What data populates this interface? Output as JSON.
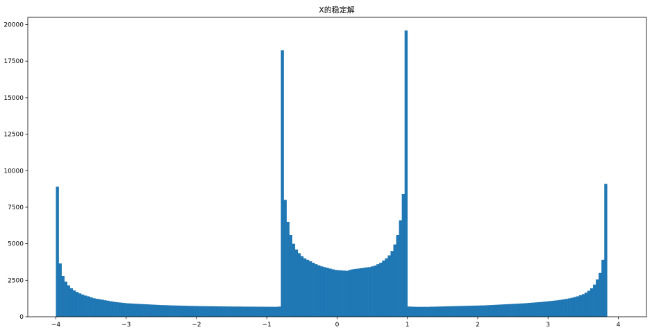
{
  "chart_data": {
    "type": "bar",
    "title": "X的稳定解",
    "xlabel": "",
    "ylabel": "",
    "bar_color": "#1f77b4",
    "grid": false,
    "xlim": [
      -4.4,
      4.4
    ],
    "ylim": [
      0,
      20500
    ],
    "x_ticks": [
      -4,
      -3,
      -2,
      -1,
      0,
      1,
      2,
      3,
      4
    ],
    "x_tick_labels": [
      "−4",
      "−3",
      "−2",
      "−1",
      "0",
      "1",
      "2",
      "3",
      "4"
    ],
    "y_ticks": [
      0,
      2500,
      5000,
      7500,
      10000,
      12500,
      15000,
      17500,
      20000
    ],
    "y_tick_labels": [
      "0",
      "2500",
      "5000",
      "7500",
      "10000",
      "12500",
      "15000",
      "17500",
      "20000"
    ],
    "bin_start": -4,
    "bin_width": 0.04,
    "values": [
      8900,
      3650,
      2800,
      2400,
      2150,
      1950,
      1800,
      1700,
      1600,
      1520,
      1450,
      1400,
      1330,
      1270,
      1230,
      1200,
      1170,
      1130,
      1100,
      1060,
      1030,
      1000,
      980,
      960,
      940,
      920,
      910,
      900,
      890,
      880,
      870,
      860,
      850,
      840,
      830,
      820,
      810,
      800,
      795,
      790,
      780,
      775,
      770,
      765,
      760,
      755,
      750,
      745,
      740,
      735,
      730,
      728,
      725,
      722,
      720,
      718,
      715,
      712,
      710,
      708,
      705,
      703,
      700,
      700,
      698,
      697,
      695,
      693,
      692,
      690,
      690,
      688,
      687,
      686,
      685,
      684,
      683,
      682,
      681,
      700,
      18250,
      8000,
      6500,
      5600,
      5000,
      4600,
      4350,
      4150,
      4000,
      3900,
      3800,
      3700,
      3600,
      3520,
      3450,
      3400,
      3350,
      3300,
      3250,
      3200,
      3180,
      3170,
      3160,
      3150,
      3200,
      3250,
      3280,
      3300,
      3320,
      3350,
      3380,
      3400,
      3450,
      3500,
      3600,
      3700,
      3850,
      4000,
      4200,
      4500,
      4950,
      5600,
      6600,
      8400,
      19600,
      700,
      690,
      685,
      680,
      680,
      680,
      680,
      680,
      690,
      690,
      695,
      700,
      705,
      710,
      715,
      720,
      725,
      730,
      735,
      740,
      745,
      750,
      755,
      760,
      765,
      770,
      775,
      780,
      790,
      800,
      810,
      820,
      830,
      840,
      850,
      860,
      870,
      880,
      890,
      900,
      910,
      920,
      935,
      950,
      965,
      980,
      995,
      1010,
      1030,
      1050,
      1070,
      1090,
      1110,
      1130,
      1160,
      1190,
      1220,
      1260,
      1300,
      1350,
      1400,
      1470,
      1550,
      1650,
      1780,
      1950,
      2200,
      2550,
      3000,
      3900,
      9100
    ]
  }
}
